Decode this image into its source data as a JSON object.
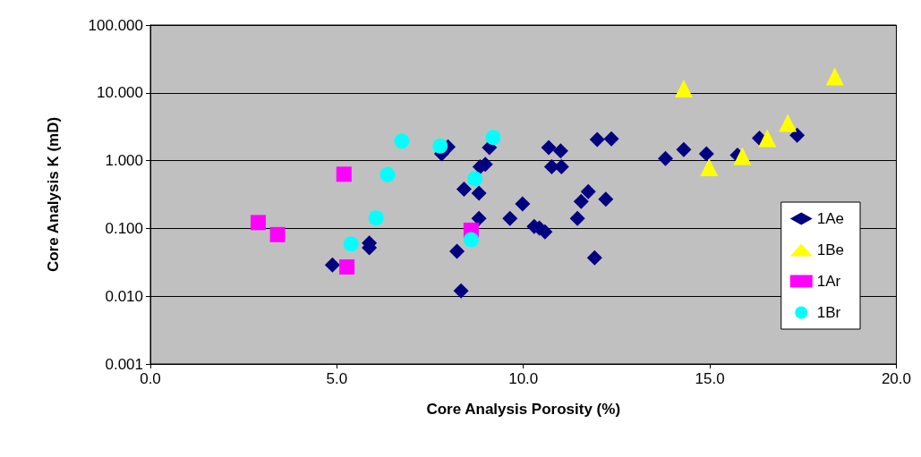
{
  "chart_data": {
    "type": "scatter",
    "xlabel": "Core Analysis Porosity (%)",
    "ylabel": "Core Analysis K (mD)",
    "log": "y",
    "grid": "y",
    "legend": "right",
    "xlim": [
      0,
      20
    ],
    "xticks": [
      {
        "value": 0,
        "label": "0.0"
      },
      {
        "value": 5,
        "label": "5.0"
      },
      {
        "value": 10,
        "label": "10.0"
      },
      {
        "value": 15,
        "label": "15.0"
      },
      {
        "value": 20,
        "label": "20.0"
      }
    ],
    "ylim": [
      0.001,
      100
    ],
    "yticks": [
      {
        "value": 0.001,
        "label": "0.001"
      },
      {
        "value": 0.01,
        "label": "0.010"
      },
      {
        "value": 0.1,
        "label": "0.100"
      },
      {
        "value": 1,
        "label": "1.000"
      },
      {
        "value": 10,
        "label": "10.000"
      },
      {
        "value": 100,
        "label": "100.000"
      }
    ],
    "series": [
      {
        "name": "1Ae",
        "color": "#000080",
        "marker": "diamond",
        "x": [
          4.88,
          5.87,
          5.87,
          7.81,
          7.98,
          8.22,
          8.33,
          8.41,
          8.81,
          8.81,
          8.84,
          8.98,
          9.09,
          9.64,
          9.98,
          10.29,
          10.43,
          10.58,
          10.68,
          11.0,
          10.76,
          11.02,
          11.45,
          11.55,
          11.74,
          11.91,
          11.98,
          12.36,
          12.21,
          13.81,
          14.3,
          14.91,
          15.74,
          16.33,
          17.34
        ],
        "values": [
          0.029,
          0.061,
          0.052,
          1.26,
          1.6,
          0.046,
          0.012,
          0.38,
          0.33,
          0.14,
          0.81,
          0.88,
          1.56,
          0.14,
          0.23,
          0.107,
          0.101,
          0.089,
          1.56,
          1.39,
          0.81,
          0.81,
          0.14,
          0.25,
          0.35,
          0.037,
          2.05,
          2.09,
          0.27,
          1.07,
          1.45,
          1.26,
          1.2,
          2.15,
          2.37
        ]
      },
      {
        "name": "1Be",
        "color": "#ffff00",
        "marker": "triangle",
        "x": [
          14.3,
          18.35,
          17.09,
          16.54,
          15.87,
          14.98
        ],
        "values": [
          11.6,
          17.4,
          3.6,
          2.15,
          1.17,
          0.8
        ]
      },
      {
        "name": "1Ar",
        "color": "#ff00ff",
        "marker": "square",
        "x": [
          2.89,
          3.41,
          5.19,
          5.27,
          8.6
        ],
        "values": [
          0.122,
          0.081,
          0.63,
          0.027,
          0.094
        ]
      },
      {
        "name": "1Br",
        "color": "#00ffff",
        "marker": "circle",
        "x": [
          6.74,
          7.77,
          9.19,
          6.36,
          8.7,
          6.05,
          5.38,
          8.6
        ],
        "values": [
          1.94,
          1.64,
          2.2,
          0.62,
          0.54,
          0.143,
          0.059,
          0.068
        ]
      }
    ]
  }
}
